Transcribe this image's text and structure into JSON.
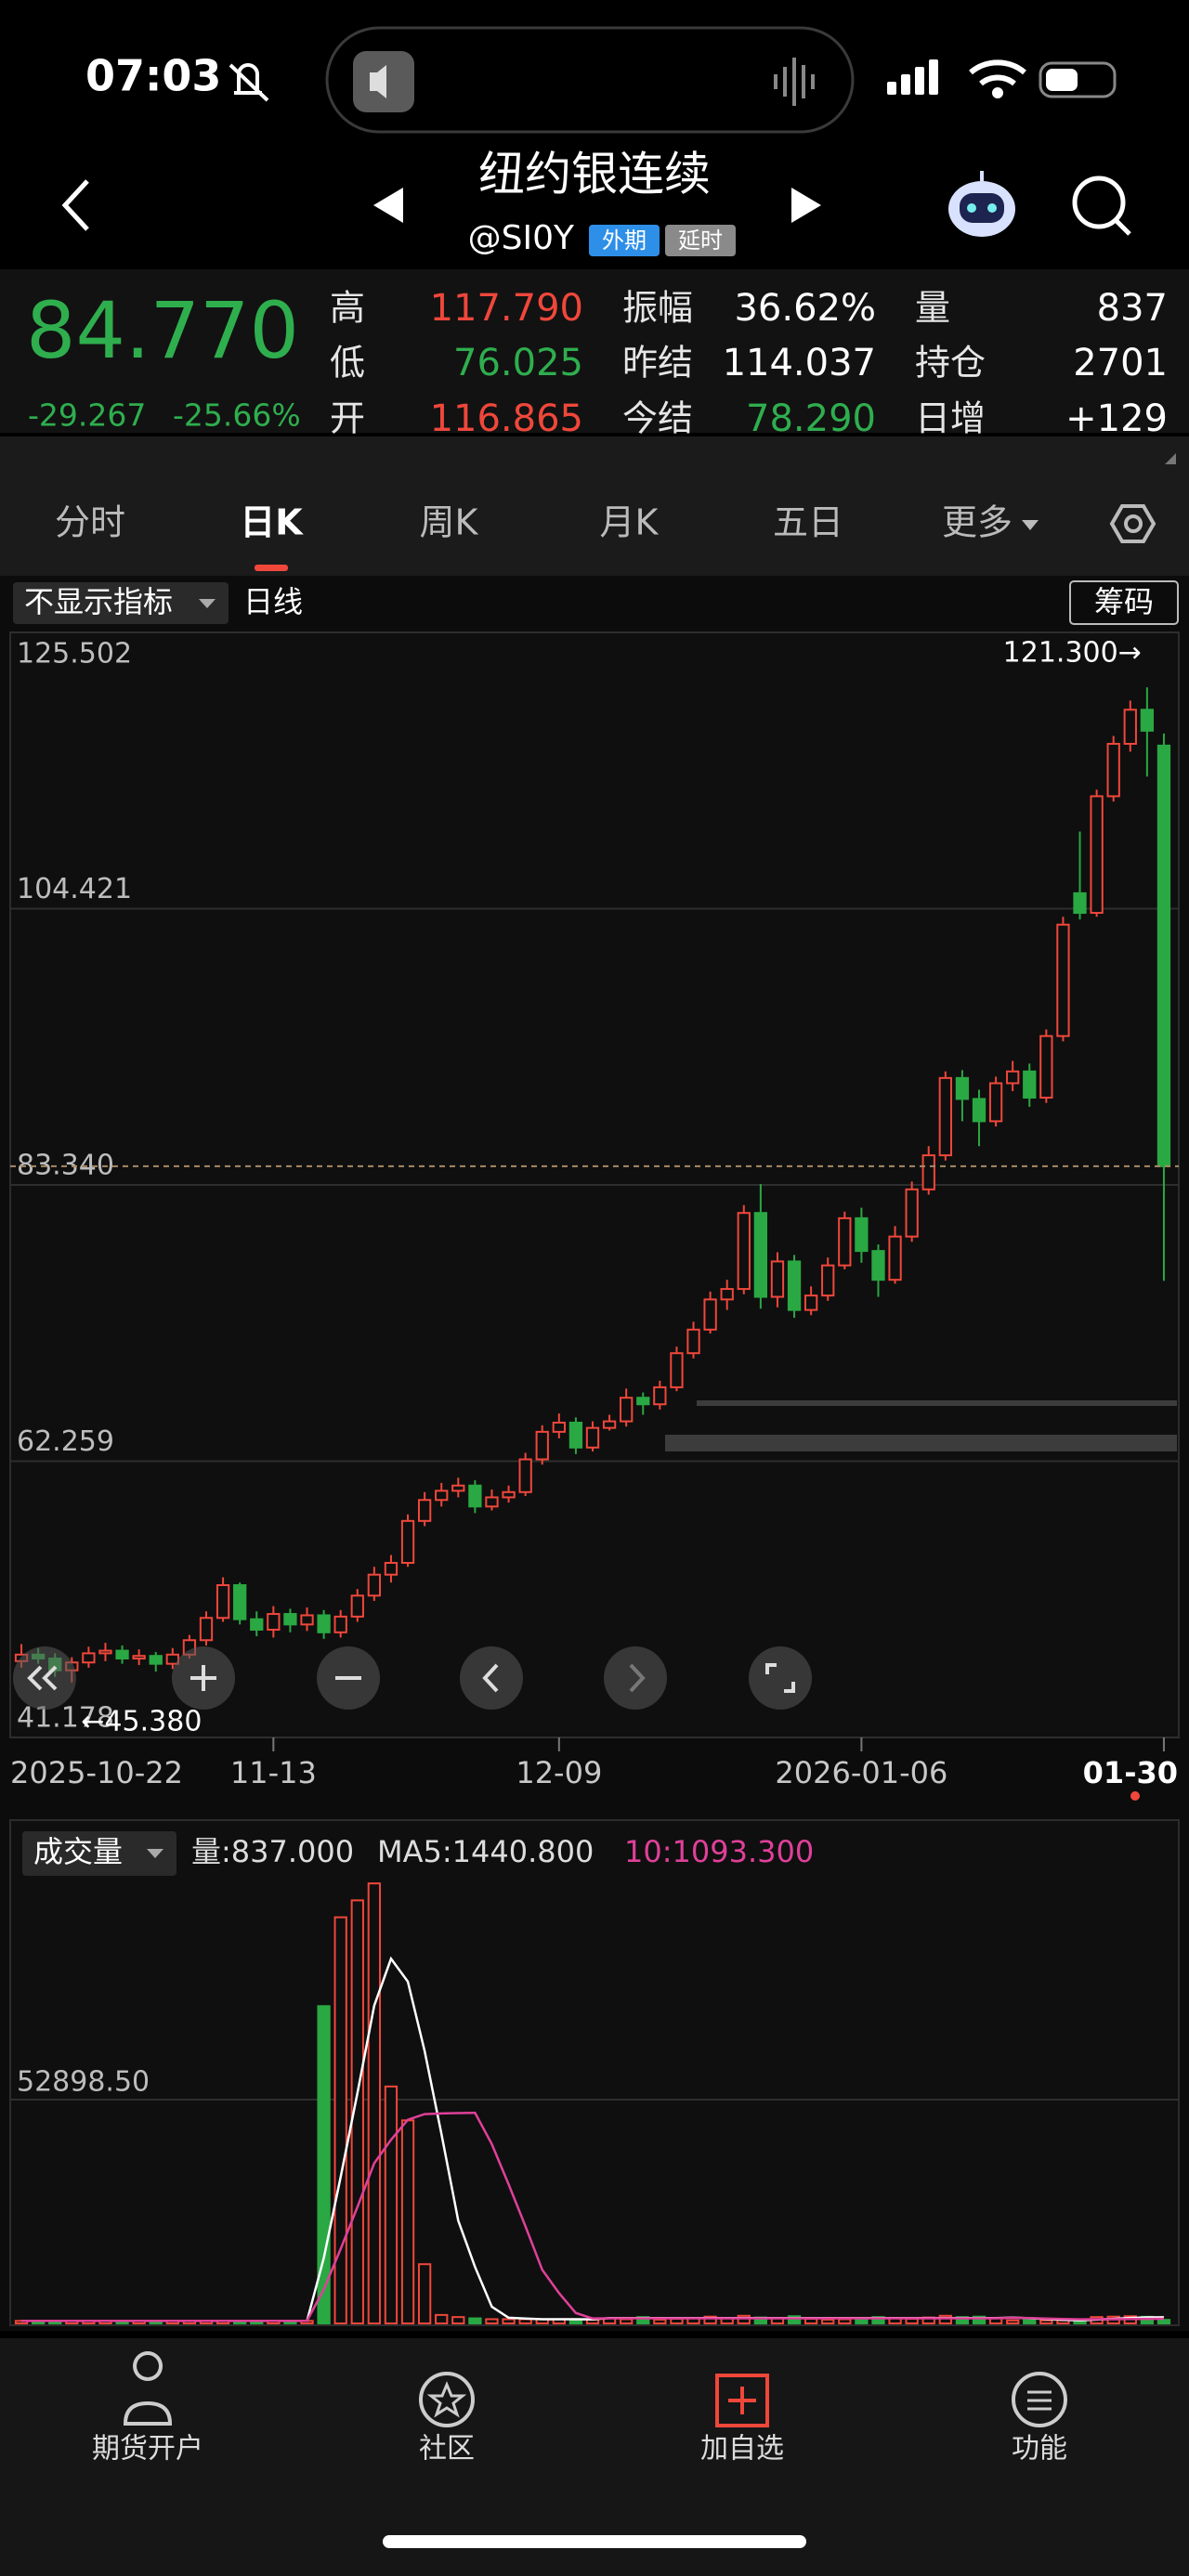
{
  "status": {
    "time": "07:03"
  },
  "header": {
    "title": "纽约银连续",
    "symbol": "@SI0Y",
    "badges": [
      "外期",
      "延时"
    ]
  },
  "quote": {
    "price": "84.770",
    "change": "-29.267",
    "change_pct": "-25.66%",
    "fields": [
      {
        "label": "高",
        "value": "117.790",
        "color": "#f0473b"
      },
      {
        "label": "低",
        "value": "76.025",
        "color": "#2fae4e"
      },
      {
        "label": "开",
        "value": "116.865",
        "color": "#f0473b"
      },
      {
        "label": "振幅",
        "value": "36.62%",
        "color": "#ffffff"
      },
      {
        "label": "昨结",
        "value": "114.037",
        "color": "#ffffff"
      },
      {
        "label": "今结",
        "value": "78.290",
        "color": "#2fae4e"
      },
      {
        "label": "量",
        "value": "837",
        "color": "#ffffff"
      },
      {
        "label": "持仓",
        "value": "2701",
        "color": "#ffffff"
      },
      {
        "label": "日增",
        "value": "+129",
        "color": "#ffffff"
      }
    ]
  },
  "tabs": [
    "分时",
    "日K",
    "周K",
    "月K",
    "五日",
    "更多"
  ],
  "active_tab": 1,
  "indicator": {
    "selector": "不显示指标",
    "period": "日线",
    "chip": "筹码"
  },
  "chart_data": [
    {
      "type": "candlestick",
      "up_color": "#f0473b",
      "down_color": "#2aa843",
      "categories": [
        "2025-10-22",
        null,
        null,
        null,
        null,
        null,
        null,
        null,
        null,
        null,
        null,
        null,
        null,
        null,
        null,
        "11-13",
        null,
        null,
        null,
        null,
        null,
        null,
        null,
        null,
        null,
        null,
        null,
        null,
        null,
        null,
        null,
        null,
        "12-09",
        null,
        null,
        null,
        null,
        null,
        null,
        null,
        null,
        null,
        null,
        null,
        null,
        null,
        null,
        null,
        null,
        null,
        "2026-01-06",
        null,
        null,
        null,
        null,
        null,
        null,
        null,
        null,
        null,
        null,
        null,
        null,
        null,
        null,
        null,
        null,
        null,
        "01-30"
      ],
      "open": [
        47.0,
        47.5,
        47.2,
        46.3,
        46.9,
        47.6,
        47.8,
        47.2,
        47.4,
        46.8,
        47.5,
        48.6,
        50.3,
        52.8,
        50.2,
        49.4,
        50.6,
        49.8,
        50.5,
        49.2,
        50.4,
        52.0,
        53.6,
        54.5,
        57.7,
        59.3,
        60.0,
        60.4,
        58.8,
        59.5,
        59.9,
        62.4,
        64.5,
        65.2,
        63.3,
        64.8,
        65.3,
        67.1,
        66.6,
        67.9,
        70.5,
        72.3,
        74.6,
        75.4,
        81.2,
        74.8,
        77.5,
        73.8,
        74.9,
        77.2,
        80.8,
        78.3,
        76.1,
        79.4,
        83.0,
        85.6,
        91.5,
        89.9,
        88.2,
        91.1,
        92.0,
        90.0,
        94.7,
        105.6,
        104.1,
        113.0,
        117.0,
        119.6,
        116.865
      ],
      "high": [
        48.3,
        48.0,
        47.6,
        47.3,
        48.1,
        48.4,
        48.2,
        47.9,
        47.7,
        48.0,
        49.0,
        50.8,
        53.4,
        53.0,
        50.8,
        51.2,
        51.0,
        51.1,
        50.9,
        50.9,
        52.5,
        54.2,
        55.1,
        58.2,
        59.9,
        60.6,
        61.0,
        60.8,
        60.1,
        60.4,
        62.9,
        65.0,
        65.9,
        65.6,
        65.3,
        65.8,
        67.8,
        67.5,
        68.4,
        71.0,
        72.9,
        75.2,
        76.1,
        81.8,
        83.4,
        78.2,
        78.0,
        75.6,
        77.8,
        81.3,
        81.6,
        78.8,
        80.2,
        83.6,
        86.3,
        92.0,
        92.1,
        90.6,
        91.6,
        92.8,
        92.6,
        95.2,
        103.8,
        110.3,
        113.5,
        117.6,
        120.3,
        121.3,
        117.79
      ],
      "low": [
        46.5,
        46.8,
        45.8,
        45.38,
        46.5,
        47.0,
        46.8,
        46.7,
        46.2,
        46.4,
        47.2,
        48.2,
        50.0,
        49.8,
        48.9,
        48.8,
        49.2,
        49.3,
        48.7,
        48.8,
        50.0,
        51.6,
        53.0,
        54.2,
        57.3,
        58.8,
        59.5,
        58.3,
        58.5,
        59.1,
        59.6,
        62.0,
        64.0,
        62.8,
        63.0,
        64.6,
        64.9,
        65.8,
        66.2,
        67.6,
        70.1,
        72.0,
        73.8,
        75.0,
        73.9,
        74.0,
        73.2,
        73.4,
        74.5,
        76.9,
        77.4,
        74.8,
        75.8,
        79.0,
        82.6,
        85.2,
        88.2,
        86.3,
        87.8,
        90.5,
        89.3,
        89.6,
        94.3,
        103.6,
        103.8,
        112.6,
        116.4,
        114.5,
        76.025
      ],
      "close": [
        47.5,
        47.2,
        46.3,
        46.9,
        47.6,
        47.8,
        47.2,
        47.4,
        46.8,
        47.5,
        48.6,
        50.3,
        52.8,
        50.2,
        49.4,
        50.6,
        49.8,
        50.5,
        49.2,
        50.4,
        52.0,
        53.6,
        54.5,
        57.7,
        59.3,
        60.0,
        60.4,
        58.8,
        59.5,
        59.9,
        62.4,
        64.5,
        65.2,
        63.3,
        64.8,
        65.3,
        67.1,
        66.6,
        67.9,
        70.5,
        72.3,
        74.6,
        75.4,
        81.2,
        74.8,
        77.5,
        73.8,
        74.9,
        77.2,
        80.8,
        78.3,
        76.1,
        79.4,
        83.0,
        85.6,
        91.5,
        89.9,
        88.2,
        91.1,
        92.0,
        90.0,
        94.7,
        103.2,
        104.1,
        113.0,
        117.0,
        119.6,
        118.0,
        84.77
      ],
      "ylim": [
        41.178,
        125.502
      ],
      "yticks": [
        125.502,
        104.421,
        {
          "value": 83.34,
          "label": "83.340"
        },
        62.259,
        41.178
      ],
      "grid": true,
      "annotations": {
        "max": "121.300→",
        "min": "←45.380"
      }
    },
    {
      "type": "bar",
      "title": "成交量",
      "volume_label": "量:837.000",
      "values": [
        600,
        600,
        600,
        600,
        600,
        600,
        600,
        600,
        600,
        600,
        600,
        600,
        600,
        600,
        600,
        600,
        600,
        600,
        75000,
        96000,
        100000,
        104000,
        56000,
        48000,
        14000,
        2000,
        1500,
        1200,
        1000,
        1000,
        1000,
        1000,
        1000,
        900,
        900,
        1200,
        1000,
        1500,
        900,
        1100,
        1300,
        1600,
        1200,
        1800,
        1400,
        1300,
        1700,
        1100,
        900,
        1000,
        1200,
        1500,
        1300,
        1100,
        1400,
        1800,
        1500,
        1600,
        1300,
        700,
        800,
        750,
        739,
        740,
        1500,
        1600,
        1700,
        1567,
        837
      ],
      "series": [
        {
          "name": "MA5:1440.800",
          "color": "#ffffff",
          "values": [
            600,
            600,
            600,
            600,
            600,
            600,
            600,
            600,
            600,
            600,
            600,
            600,
            600,
            600,
            600,
            600,
            600,
            600,
            15480,
            34560,
            54440,
            75120,
            86200,
            80800,
            64400,
            44800,
            24300,
            13340,
            3940,
            1340,
            1140,
            1000,
            1000,
            980,
            960,
            1250,
            1250,
            1250,
            1250,
            1250,
            1250,
            1250,
            1250,
            1250,
            1250,
            1250,
            1250,
            1250,
            1250,
            1250,
            1250,
            1250,
            1250,
            1250,
            1250,
            1250,
            1250,
            1250,
            1250,
            1380,
            1240,
            1030,
            858,
            746,
            906,
            1066,
            1286,
            1421,
            1440.8
          ]
        },
        {
          "name": "10:1093.300",
          "color": "#e0409a",
          "values": [
            600,
            600,
            600,
            600,
            600,
            600,
            600,
            600,
            600,
            600,
            600,
            600,
            600,
            600,
            600,
            600,
            600,
            600,
            8040,
            17580,
            27520,
            37860,
            43400,
            48140,
            49480,
            49620,
            49710,
            49770,
            42370,
            32870,
            22970,
            12670,
            7170,
            2470,
            1170,
            1200,
            1200,
            1200,
            1200,
            1200,
            1200,
            1200,
            1200,
            1200,
            1200,
            1200,
            1200,
            1200,
            1200,
            1200,
            1200,
            1200,
            1200,
            1200,
            1200,
            1200,
            1200,
            1200,
            1200,
            1310,
            1250,
            1150,
            1040,
            960,
            990,
            1000,
            1040,
            1060,
            1093.3
          ]
        }
      ],
      "ylim": [
        0,
        105797
      ],
      "yticks": [
        {
          "value": 52898.5,
          "label": "52898.50"
        }
      ],
      "grid": true
    }
  ],
  "nav": [
    "期货开户",
    "社区",
    "加自选",
    "功能"
  ]
}
